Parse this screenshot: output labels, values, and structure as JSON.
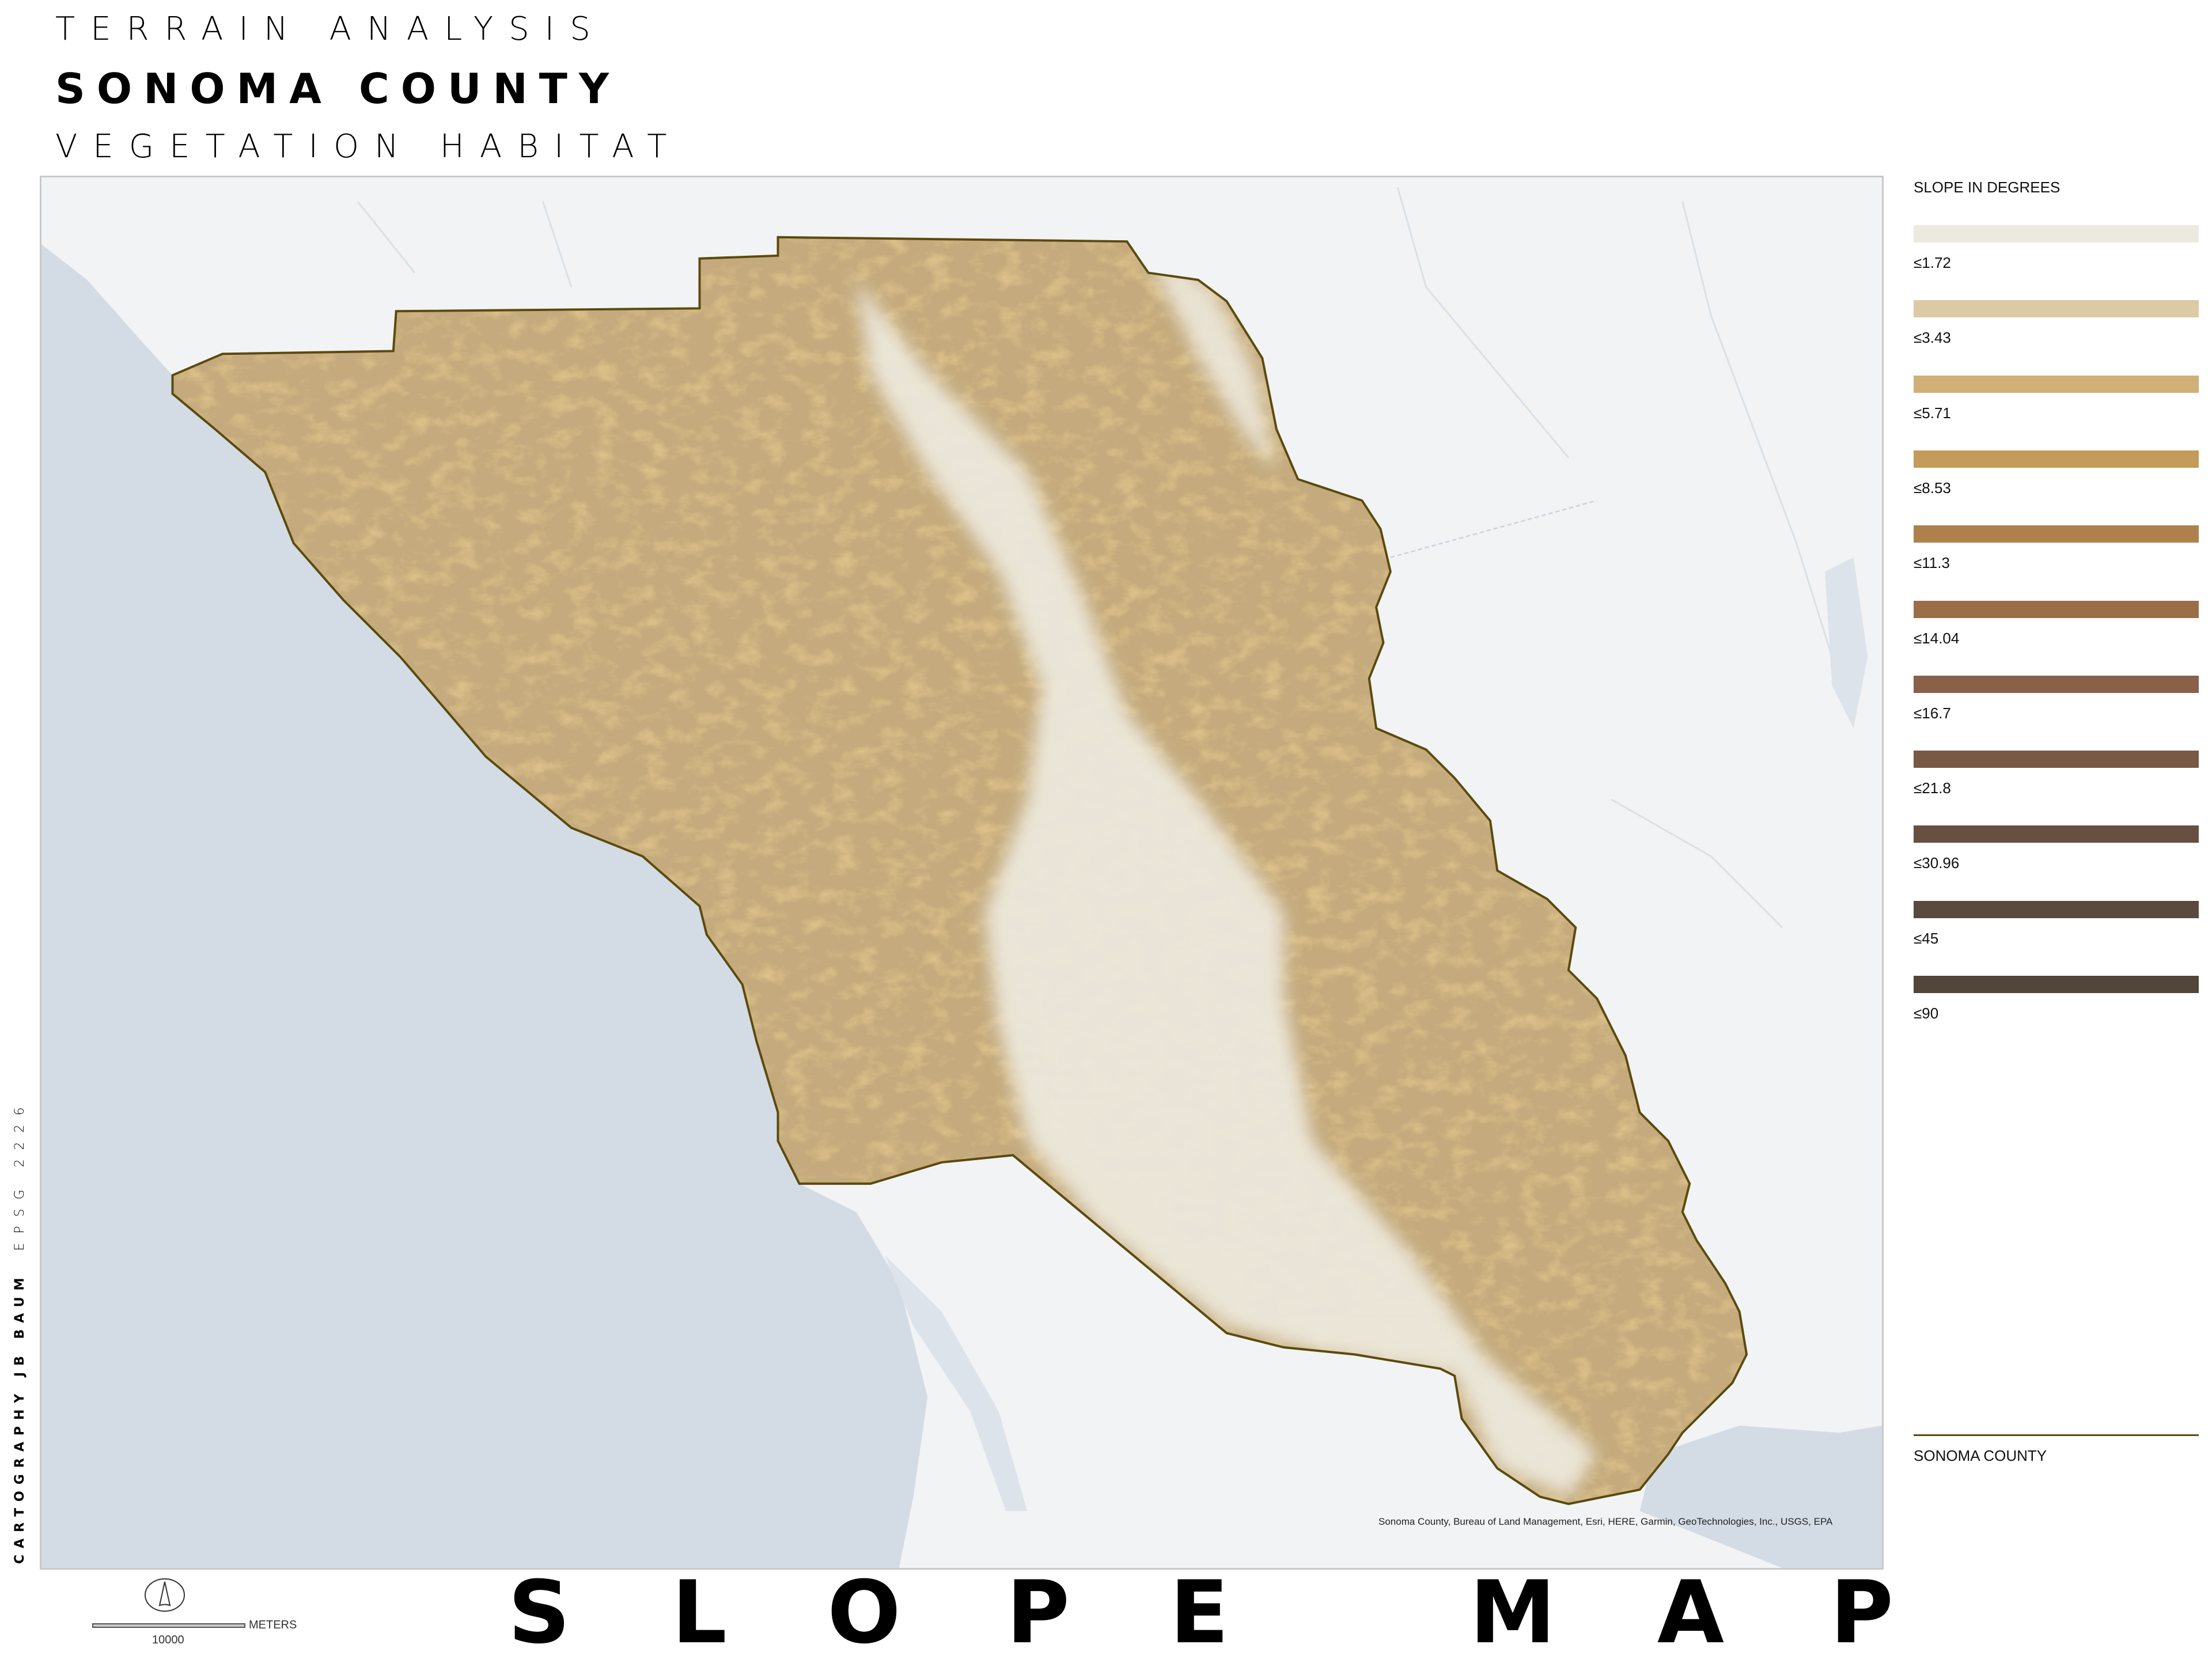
{
  "header": {
    "line1": "TERRAIN ANALYSIS",
    "line2": "SONOMA COUNTY",
    "line3": "VEGETATION HABITAT"
  },
  "map": {
    "attribution": "Sonoma County, Bureau of Land Management, Esri, HERE, Garmin, GeoTechnologies, Inc., USGS, EPA",
    "colors": {
      "water": "#d3dce5",
      "land": "#f1f3f4",
      "county_outline": "#5b4a0e",
      "flat_terrain": "#ece8dc"
    }
  },
  "legend": {
    "title": "SLOPE IN DEGREES",
    "items": [
      {
        "label": "≤1.72",
        "color": "#ece9de"
      },
      {
        "label": "≤3.43",
        "color": "#dccaa5"
      },
      {
        "label": "≤5.71",
        "color": "#d0b077"
      },
      {
        "label": "≤8.53",
        "color": "#c49b5b"
      },
      {
        "label": "≤11.3",
        "color": "#ae814c"
      },
      {
        "label": "≤14.04",
        "color": "#9b6e48"
      },
      {
        "label": "≤16.7",
        "color": "#8a6049"
      },
      {
        "label": "≤21.8",
        "color": "#775945"
      },
      {
        "label": "≤30.96",
        "color": "#674f42"
      },
      {
        "label": "≤45",
        "color": "#5a4a3e"
      },
      {
        "label": "≤90",
        "color": "#524539"
      }
    ],
    "boundary_label": "SONOMA COUNTY"
  },
  "credits": {
    "author": "CARTOGRAPHY JB BAUM",
    "projection": "EPSG 2226"
  },
  "scale": {
    "value": "10000",
    "units": "METERS"
  },
  "north_arrow_icon": "north-arrow-icon",
  "footer_title": [
    "S",
    "L",
    "O",
    "P",
    "E",
    "M",
    "A",
    "P"
  ]
}
